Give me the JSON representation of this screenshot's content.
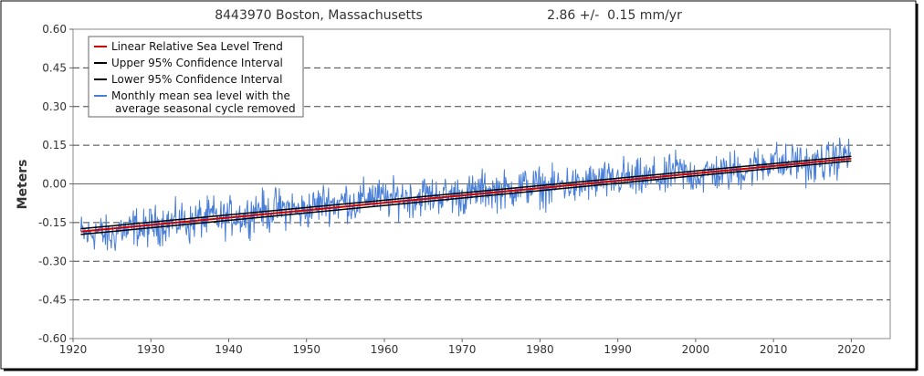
{
  "chart_data": {
    "type": "line",
    "title": "8443970 Boston, Massachusetts",
    "trend_label": "2.86 +/-  0.15 mm/yr",
    "ylabel": "Meters",
    "xlabel": "",
    "xlim": [
      1920,
      2025
    ],
    "ylim": [
      -0.6,
      0.6
    ],
    "x_ticks": [
      "1920",
      "1930",
      "1940",
      "1950",
      "1960",
      "1970",
      "1980",
      "1990",
      "2000",
      "2010",
      "2020"
    ],
    "x_tick_values": [
      1920,
      1930,
      1940,
      1950,
      1960,
      1970,
      1980,
      1990,
      2000,
      2010,
      2020
    ],
    "y_ticks": [
      "0.60",
      "0.45",
      "0.30",
      "0.15",
      "0.00",
      "-0.15",
      "-0.30",
      "-0.45",
      "-0.60"
    ],
    "y_tick_values": [
      0.6,
      0.45,
      0.3,
      0.15,
      0.0,
      -0.15,
      -0.3,
      -0.45,
      -0.6
    ],
    "grid": "horizontal dashed",
    "legend_position": "top-left",
    "legend": [
      {
        "label": "Linear Relative Sea Level Trend",
        "color": "#cc0000"
      },
      {
        "label": "Upper 95% Confidence Interval",
        "color": "#000000"
      },
      {
        "label": "Lower 95% Confidence Interval",
        "color": "#000000"
      },
      {
        "label": "Monthly mean sea level with the",
        "label2": "average seasonal cycle removed",
        "color": "#4a7fd8"
      }
    ],
    "series": [
      {
        "type": "line",
        "color": "#cc0000",
        "x": [
          1921,
          2020
        ],
        "y": [
          -0.185,
          0.098
        ]
      },
      {
        "type": "line",
        "color": "#000000",
        "x": [
          1921,
          2020
        ],
        "y": [
          -0.174,
          0.107
        ]
      },
      {
        "type": "line",
        "color": "#000000",
        "x": [
          1921,
          2020
        ],
        "y": [
          -0.196,
          0.089
        ]
      },
      {
        "type": "monthly",
        "color": "#4a7fd8",
        "x": [
          1921,
          1922,
          1923,
          1924,
          1925,
          1926,
          1927,
          1928,
          1929,
          1930,
          1931,
          1932,
          1933,
          1934,
          1935,
          1936,
          1937,
          1938,
          1939,
          1940,
          1941,
          1942,
          1943,
          1944,
          1945,
          1946,
          1947,
          1948,
          1949,
          1950,
          1951,
          1952,
          1953,
          1954,
          1955,
          1956,
          1957,
          1958,
          1959,
          1960,
          1961,
          1962,
          1963,
          1964,
          1965,
          1966,
          1967,
          1968,
          1969,
          1970,
          1971,
          1972,
          1973,
          1974,
          1975,
          1976,
          1977,
          1978,
          1979,
          1980,
          1981,
          1982,
          1983,
          1984,
          1985,
          1986,
          1987,
          1988,
          1989,
          1990,
          1991,
          1992,
          1993,
          1994,
          1995,
          1996,
          1997,
          1998,
          1999,
          2000,
          2001,
          2002,
          2003,
          2004,
          2005,
          2006,
          2007,
          2008,
          2009,
          2010,
          2011,
          2012,
          2013,
          2014,
          2015,
          2016,
          2017,
          2018,
          2019,
          2020
        ],
        "y": [
          -0.19,
          -0.2,
          -0.18,
          -0.2,
          -0.21,
          -0.17,
          -0.19,
          -0.16,
          -0.18,
          -0.16,
          -0.16,
          -0.15,
          -0.15,
          -0.14,
          -0.16,
          -0.13,
          -0.14,
          -0.12,
          -0.14,
          -0.13,
          -0.12,
          -0.13,
          -0.11,
          -0.09,
          -0.12,
          -0.09,
          -0.1,
          -0.09,
          -0.11,
          -0.1,
          -0.09,
          -0.07,
          -0.07,
          -0.08,
          -0.06,
          -0.08,
          -0.07,
          -0.04,
          -0.05,
          -0.06,
          -0.06,
          -0.05,
          -0.05,
          -0.06,
          -0.04,
          -0.05,
          -0.04,
          -0.05,
          -0.04,
          -0.05,
          -0.04,
          -0.03,
          -0.02,
          -0.03,
          -0.02,
          -0.03,
          -0.01,
          -0.01,
          -0.01,
          -0.01,
          -0.02,
          -0.01,
          0.0,
          0.0,
          -0.02,
          0.01,
          0.0,
          0.02,
          0.0,
          0.02,
          0.03,
          0.01,
          0.02,
          0.02,
          0.03,
          0.01,
          0.05,
          0.05,
          0.03,
          0.04,
          0.03,
          0.05,
          0.04,
          0.04,
          0.06,
          0.05,
          0.06,
          0.07,
          0.08,
          0.1,
          0.07,
          0.08,
          0.09,
          0.08,
          0.06,
          0.09,
          0.08,
          0.1,
          0.11,
          0.12
        ],
        "range_low": -0.28,
        "range_high": 0.29
      }
    ]
  }
}
